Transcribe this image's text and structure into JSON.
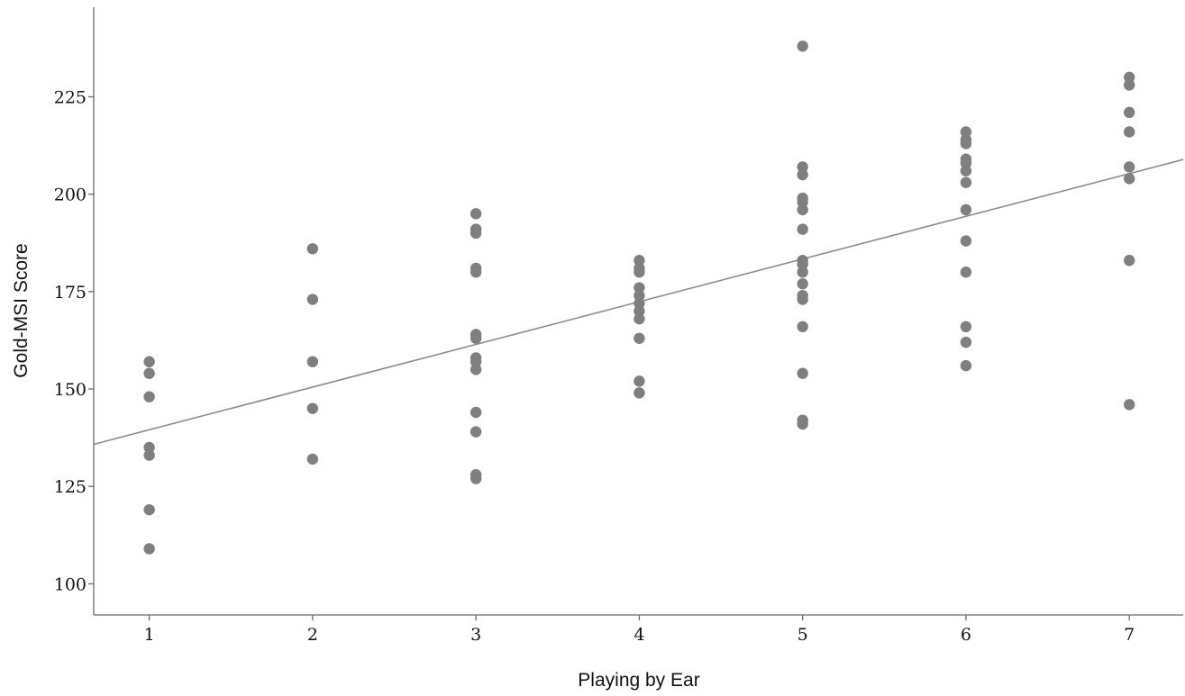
{
  "chart_data": {
    "type": "scatter",
    "title": "",
    "xlabel": "Playing by Ear",
    "ylabel": "Gold-MSI Score",
    "xlim": [
      0.66,
      7.33
    ],
    "ylim": [
      92,
      248
    ],
    "x_ticks": [
      1,
      2,
      3,
      4,
      5,
      6,
      7
    ],
    "y_ticks": [
      100,
      125,
      150,
      175,
      200,
      225
    ],
    "grid": false,
    "legend": "none",
    "marker_color": "#7f7f7f",
    "fit_line_color": "#8c8c8c",
    "fit_line": {
      "x": [
        0.66,
        7.33
      ],
      "y": [
        135.8,
        208.9
      ]
    },
    "points": [
      {
        "x": 1,
        "y": 157
      },
      {
        "x": 1,
        "y": 154
      },
      {
        "x": 1,
        "y": 148
      },
      {
        "x": 1,
        "y": 135
      },
      {
        "x": 1,
        "y": 133
      },
      {
        "x": 1,
        "y": 119
      },
      {
        "x": 1,
        "y": 109
      },
      {
        "x": 2,
        "y": 186
      },
      {
        "x": 2,
        "y": 173
      },
      {
        "x": 2,
        "y": 157
      },
      {
        "x": 2,
        "y": 145
      },
      {
        "x": 2,
        "y": 132
      },
      {
        "x": 3,
        "y": 195
      },
      {
        "x": 3,
        "y": 191
      },
      {
        "x": 3,
        "y": 190
      },
      {
        "x": 3,
        "y": 181
      },
      {
        "x": 3,
        "y": 180
      },
      {
        "x": 3,
        "y": 164
      },
      {
        "x": 3,
        "y": 163
      },
      {
        "x": 3,
        "y": 158
      },
      {
        "x": 3,
        "y": 157
      },
      {
        "x": 3,
        "y": 155
      },
      {
        "x": 3,
        "y": 144
      },
      {
        "x": 3,
        "y": 139
      },
      {
        "x": 3,
        "y": 128
      },
      {
        "x": 3,
        "y": 127
      },
      {
        "x": 4,
        "y": 183
      },
      {
        "x": 4,
        "y": 181
      },
      {
        "x": 4,
        "y": 180
      },
      {
        "x": 4,
        "y": 176
      },
      {
        "x": 4,
        "y": 174
      },
      {
        "x": 4,
        "y": 172
      },
      {
        "x": 4,
        "y": 170
      },
      {
        "x": 4,
        "y": 168
      },
      {
        "x": 4,
        "y": 163
      },
      {
        "x": 4,
        "y": 152
      },
      {
        "x": 4,
        "y": 149
      },
      {
        "x": 5,
        "y": 238
      },
      {
        "x": 5,
        "y": 207
      },
      {
        "x": 5,
        "y": 205
      },
      {
        "x": 5,
        "y": 199
      },
      {
        "x": 5,
        "y": 198
      },
      {
        "x": 5,
        "y": 196
      },
      {
        "x": 5,
        "y": 191
      },
      {
        "x": 5,
        "y": 183
      },
      {
        "x": 5,
        "y": 182
      },
      {
        "x": 5,
        "y": 180
      },
      {
        "x": 5,
        "y": 177
      },
      {
        "x": 5,
        "y": 174
      },
      {
        "x": 5,
        "y": 173
      },
      {
        "x": 5,
        "y": 166
      },
      {
        "x": 5,
        "y": 154
      },
      {
        "x": 5,
        "y": 142
      },
      {
        "x": 5,
        "y": 141
      },
      {
        "x": 6,
        "y": 216
      },
      {
        "x": 6,
        "y": 214
      },
      {
        "x": 6,
        "y": 213
      },
      {
        "x": 6,
        "y": 209
      },
      {
        "x": 6,
        "y": 208
      },
      {
        "x": 6,
        "y": 206
      },
      {
        "x": 6,
        "y": 203
      },
      {
        "x": 6,
        "y": 196
      },
      {
        "x": 6,
        "y": 188
      },
      {
        "x": 6,
        "y": 180
      },
      {
        "x": 6,
        "y": 166
      },
      {
        "x": 6,
        "y": 162
      },
      {
        "x": 6,
        "y": 156
      },
      {
        "x": 7,
        "y": 230
      },
      {
        "x": 7,
        "y": 228
      },
      {
        "x": 7,
        "y": 221
      },
      {
        "x": 7,
        "y": 216
      },
      {
        "x": 7,
        "y": 207
      },
      {
        "x": 7,
        "y": 204
      },
      {
        "x": 7,
        "y": 183
      },
      {
        "x": 7,
        "y": 146
      }
    ]
  }
}
